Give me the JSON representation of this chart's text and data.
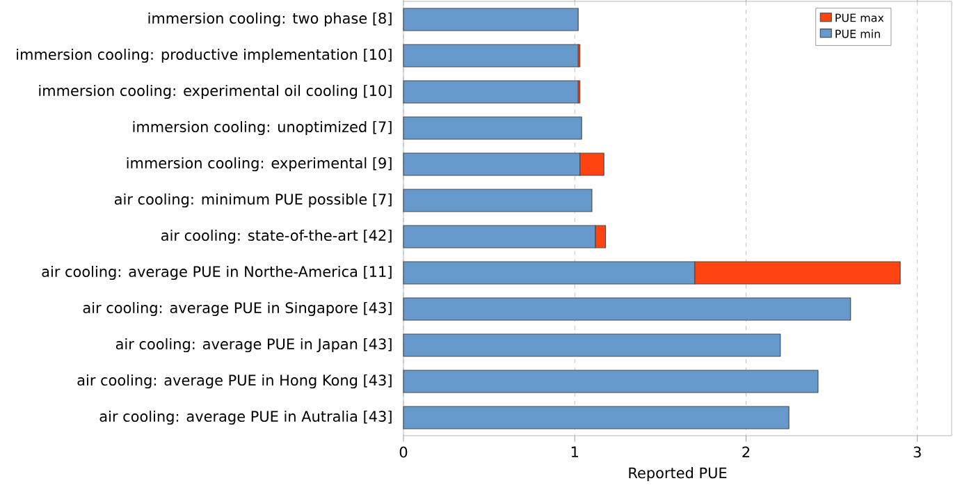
{
  "chart_data": {
    "type": "bar",
    "orientation": "horizontal",
    "stacked": true,
    "categories": [
      "immersion cooling: two phase [8]",
      "immersion cooling: productive implementation [10]",
      "immersion cooling: experimental oil cooling [10]",
      "immersion cooling: unoptimized [7]",
      "immersion cooling: experimental [9]",
      "air cooling: minimum PUE possible [7]",
      "air cooling: state-of-the-art [42]",
      "air cooling: average PUE in Northe-America [11]",
      "air cooling: average PUE in Singapore [43]",
      "air cooling: average PUE in Japan [43]",
      "air cooling: average PUE in Hong Kong [43]",
      "air cooling: average PUE in Autralia [43]"
    ],
    "series": [
      {
        "name": "PUE min",
        "color": "#6699cc",
        "values": [
          1.02,
          1.02,
          1.02,
          1.04,
          1.03,
          1.1,
          1.12,
          1.7,
          2.61,
          2.2,
          2.42,
          2.25
        ]
      },
      {
        "name": "PUE max",
        "color": "#ff4411",
        "values": [
          null,
          0.01,
          0.01,
          null,
          0.14,
          null,
          0.06,
          1.2,
          null,
          null,
          null,
          null
        ]
      }
    ],
    "xlabel": "Reported PUE",
    "xlim": [
      0,
      3.2
    ],
    "xticks": [
      0,
      1,
      2,
      3
    ],
    "grid": "x",
    "legend": "top right"
  }
}
